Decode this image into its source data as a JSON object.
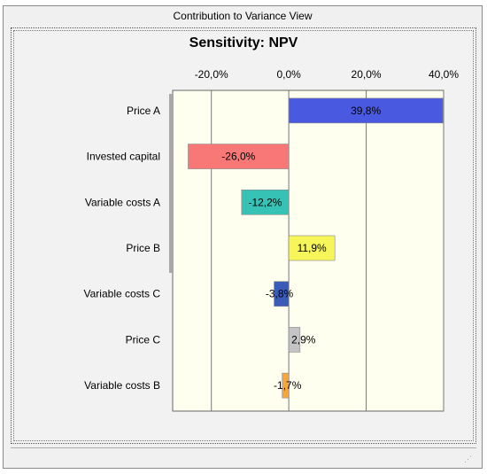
{
  "window": {
    "title": "Contribution to Variance View"
  },
  "chart_data": {
    "type": "bar",
    "orientation": "horizontal",
    "title": "Sensitivity: NPV",
    "xlabel": "",
    "ylabel": "",
    "xlim": [
      -30,
      40
    ],
    "x_ticks": [
      -20,
      0,
      20,
      40
    ],
    "x_tick_labels": [
      "-20,0%",
      "0,0%",
      "20,0%",
      "40,0%"
    ],
    "x_axis_position": "top",
    "grid": true,
    "categories": [
      "Price A",
      "Invested capital",
      "Variable costs  A",
      "Price B",
      "Variable costs C",
      "Price C",
      "Variable costs B"
    ],
    "values": [
      39.8,
      -26.0,
      -12.2,
      11.9,
      -3.8,
      2.9,
      -1.7
    ],
    "value_labels": [
      "39,8%",
      "-26,0%",
      "-12,2%",
      "11,9%",
      "-3,8%",
      "2,9%",
      "-1,7%"
    ],
    "colors": [
      "#4a5ae0",
      "#f87878",
      "#36c3b6",
      "#f6f65a",
      "#3a5cb8",
      "#c4c4c4",
      "#f6a63a"
    ],
    "plot_background": "#fffff0"
  }
}
